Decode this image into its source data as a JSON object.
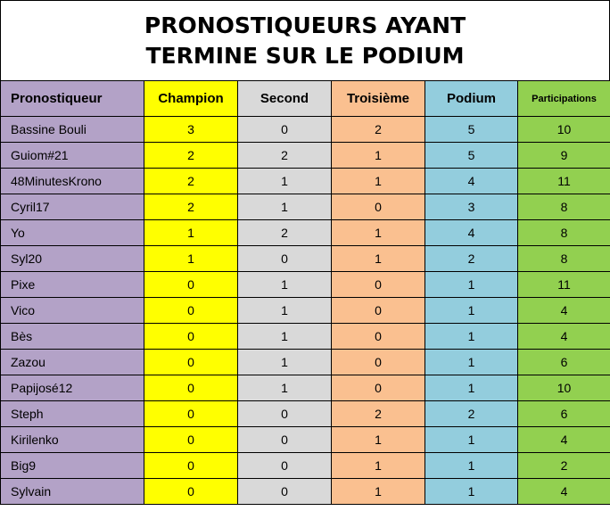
{
  "title": {
    "line1": "PRONOSTIQUEURS AYANT",
    "line2": "TERMINE SUR LE PODIUM"
  },
  "colors": {
    "name": "#b3a2c7",
    "champion": "#ffff00",
    "second": "#d9d9d9",
    "troisieme": "#fac090",
    "podium": "#93cddd",
    "participations": "#92d050"
  },
  "table": {
    "headers": [
      "Pronostiqueur",
      "Champion",
      "Second",
      "Troisième",
      "Podium",
      "Participations"
    ],
    "rows": [
      [
        "Bassine Bouli",
        "3",
        "0",
        "2",
        "5",
        "10"
      ],
      [
        "Guiom#21",
        "2",
        "2",
        "1",
        "5",
        "9"
      ],
      [
        "48MinutesKrono",
        "2",
        "1",
        "1",
        "4",
        "11"
      ],
      [
        "Cyril17",
        "2",
        "1",
        "0",
        "3",
        "8"
      ],
      [
        "Yo",
        "1",
        "2",
        "1",
        "4",
        "8"
      ],
      [
        "Syl20",
        "1",
        "0",
        "1",
        "2",
        "8"
      ],
      [
        "Pixe",
        "0",
        "1",
        "0",
        "1",
        "11"
      ],
      [
        "Vico",
        "0",
        "1",
        "0",
        "1",
        "4"
      ],
      [
        "Bès",
        "0",
        "1",
        "0",
        "1",
        "4"
      ],
      [
        "Zazou",
        "0",
        "1",
        "0",
        "1",
        "6"
      ],
      [
        "Papijosé12",
        "0",
        "1",
        "0",
        "1",
        "10"
      ],
      [
        "Steph",
        "0",
        "0",
        "2",
        "2",
        "6"
      ],
      [
        "Kirilenko",
        "0",
        "0",
        "1",
        "1",
        "4"
      ],
      [
        "Big9",
        "0",
        "0",
        "1",
        "1",
        "2"
      ],
      [
        "Sylvain",
        "0",
        "0",
        "1",
        "1",
        "4"
      ]
    ]
  }
}
